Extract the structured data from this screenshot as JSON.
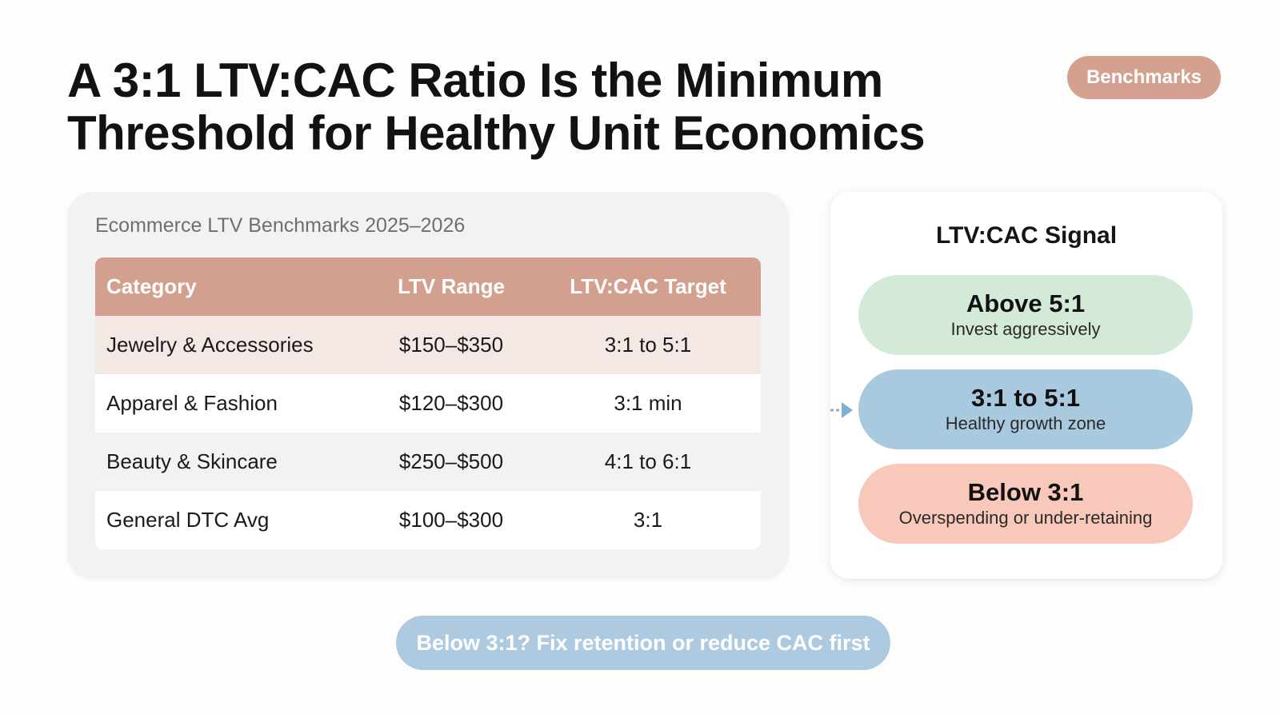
{
  "title_line1": "A 3:1 LTV:CAC Ratio Is the Minimum",
  "title_line2": "Threshold for Healthy Unit Economics",
  "badge": "Benchmarks",
  "benchmarks": {
    "heading": "Ecommerce LTV Benchmarks 2025–2026",
    "columns": [
      "Category",
      "LTV Range",
      "LTV:CAC Target"
    ],
    "rows": [
      [
        "Jewelry & Accessories",
        "$150–$350",
        "3:1 to 5:1"
      ],
      [
        "Apparel & Fashion",
        "$120–$300",
        "3:1 min"
      ],
      [
        "Beauty & Skincare",
        "$250–$500",
        "4:1 to 6:1"
      ],
      [
        "General DTC Avg",
        "$100–$300",
        "3:1"
      ]
    ]
  },
  "signal": {
    "title": "LTV:CAC Signal",
    "items": [
      {
        "label": "Above 5:1",
        "sub": "Invest aggressively",
        "color": "#d3ead9"
      },
      {
        "label": "3:1 to 5:1",
        "sub": "Healthy growth zone",
        "color": "#a9c9de"
      },
      {
        "label": "Below 3:1",
        "sub": "Overspending or under-retaining",
        "color": "#f8c8bb"
      }
    ],
    "indicator_icon": "arrow-right-icon"
  },
  "footer": "Below 3:1? Fix retention or reduce CAC first",
  "colors": {
    "accent_header": "#d3a08f",
    "badge": "#d4a190",
    "footer": "#adcae0",
    "arrow": "#7fb0d4"
  }
}
